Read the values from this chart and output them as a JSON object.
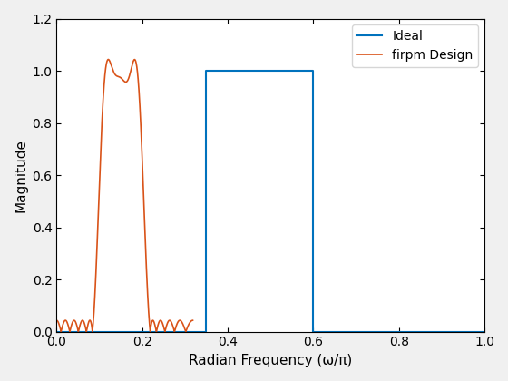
{
  "title": "",
  "xlabel": "Radian Frequency (ω/π)",
  "ylabel": "Magnitude",
  "xlim": [
    0,
    1
  ],
  "ylim": [
    0,
    1.2
  ],
  "xticks": [
    0,
    0.2,
    0.4,
    0.6,
    0.8,
    1.0
  ],
  "yticks": [
    0,
    0.2,
    0.4,
    0.6,
    0.8,
    1.0,
    1.2
  ],
  "ideal_color": "#0072BD",
  "firpm_color": "#D95319",
  "ideal_label": "Ideal",
  "firpm_label": "firpm Design",
  "ideal_linewidth": 1.5,
  "firpm_linewidth": 1.2,
  "figsize": [
    5.6,
    4.2
  ],
  "dpi": 100
}
